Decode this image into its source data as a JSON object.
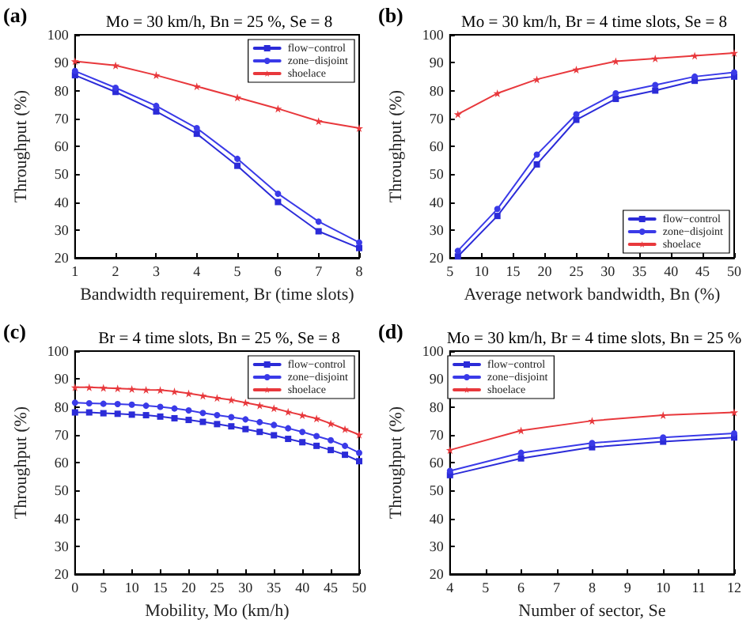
{
  "chart_data": [
    {
      "type": "line",
      "title": "Mo = 30 km/h, Bn = 25 %, Se = 8",
      "annotations": [
        "(a)"
      ],
      "xlabel": "Bandwidth requirement, Br (time slots)",
      "ylabel": "Throughput (%)",
      "x": [
        1,
        2,
        3,
        4,
        5,
        6,
        7,
        8
      ],
      "xlim": [
        1,
        8
      ],
      "xticks": [
        1,
        2,
        3,
        4,
        5,
        6,
        7,
        8
      ],
      "ylim": [
        20,
        100
      ],
      "yticks": [
        20,
        30,
        40,
        50,
        60,
        70,
        80,
        90,
        100
      ],
      "legend": "top right",
      "line_style": "solid",
      "series": [
        {
          "name": "flow−control",
          "color": "#2b2bd8",
          "marker": "square",
          "values": [
            85.5,
            79.5,
            72.5,
            64.5,
            53,
            40,
            29.5,
            23.5
          ]
        },
        {
          "name": "zone−disjoint",
          "color": "#3a3ae8",
          "marker": "circle",
          "values": [
            87,
            81,
            74.5,
            66.5,
            55.5,
            43,
            33,
            25.5
          ]
        },
        {
          "name": "shoelace",
          "color": "#e8383c",
          "marker": "star",
          "values": [
            90.5,
            89,
            85.5,
            81.5,
            77.5,
            73.5,
            69,
            66.5
          ]
        }
      ]
    },
    {
      "type": "line",
      "title": "Mo = 30 km/h, Br = 4 time slots, Se = 8",
      "annotations": [
        "(b)"
      ],
      "xlabel": "Average network bandwidth, Bn (%)",
      "ylabel": "Throughput (%)",
      "x": [
        6.25,
        12.5,
        18.75,
        25,
        31.25,
        37.5,
        43.75,
        50
      ],
      "xlim": [
        5,
        50
      ],
      "xticks": [
        5,
        10,
        15,
        20,
        25,
        30,
        35,
        40,
        45,
        50
      ],
      "ylim": [
        20,
        100
      ],
      "yticks": [
        20,
        30,
        40,
        50,
        60,
        70,
        80,
        90,
        100
      ],
      "legend": "bottom right",
      "line_style": "solid",
      "series": [
        {
          "name": "flow−control",
          "color": "#2b2bd8",
          "marker": "square",
          "values": [
            20.5,
            35,
            53.5,
            69.5,
            77,
            80,
            83.5,
            85
          ]
        },
        {
          "name": "zone−disjoint",
          "color": "#3a3ae8",
          "marker": "circle",
          "values": [
            22.5,
            37.5,
            57,
            71.5,
            79,
            82,
            85,
            86.5
          ]
        },
        {
          "name": "shoelace",
          "color": "#e8383c",
          "marker": "star",
          "values": [
            71.5,
            79,
            84,
            87.5,
            90.5,
            91.5,
            92.5,
            93.5
          ]
        }
      ]
    },
    {
      "type": "line",
      "title": "Br = 4 time slots, Bn = 25 %, Se = 8",
      "annotations": [
        "(c)"
      ],
      "xlabel": "Mobility, Mo (km/h)",
      "ylabel": "Throughput (%)",
      "x": [
        0,
        2.5,
        5,
        7.5,
        10,
        12.5,
        15,
        17.5,
        20,
        22.5,
        25,
        27.5,
        30,
        32.5,
        35,
        37.5,
        40,
        42.5,
        45,
        47.5,
        50
      ],
      "xlim": [
        0,
        50
      ],
      "xticks": [
        0,
        5,
        10,
        15,
        20,
        25,
        30,
        35,
        40,
        45,
        50
      ],
      "ylim": [
        20,
        100
      ],
      "yticks": [
        20,
        30,
        40,
        50,
        60,
        70,
        80,
        90,
        100
      ],
      "legend": "top right",
      "line_style": "solid",
      "series": [
        {
          "name": "flow−control",
          "color": "#2b2bd8",
          "marker": "square",
          "values": [
            78,
            78,
            77.7,
            77.5,
            77.2,
            77,
            76.5,
            75.9,
            75.3,
            74.6,
            73.8,
            73,
            72,
            71,
            69.8,
            68.5,
            67.3,
            66,
            64.5,
            62.8,
            60.5
          ]
        },
        {
          "name": "zone−disjoint",
          "color": "#3a3ae8",
          "marker": "circle",
          "values": [
            81.5,
            81.3,
            81.1,
            81,
            80.8,
            80.4,
            80,
            79.4,
            78.7,
            77.8,
            77,
            76.3,
            75.5,
            74.5,
            73.5,
            72.3,
            71,
            69.5,
            68,
            66,
            63.5
          ]
        },
        {
          "name": "shoelace",
          "color": "#e8383c",
          "marker": "star",
          "values": [
            87,
            87,
            86.8,
            86.6,
            86.4,
            86.1,
            86,
            85.5,
            84.8,
            84,
            83.2,
            82.5,
            81.5,
            80.5,
            79.5,
            78.2,
            77,
            75.8,
            74,
            72,
            70
          ]
        }
      ]
    },
    {
      "type": "line",
      "title": "Mo = 30 km/h, Br = 4 time slots, Bn = 25 %",
      "annotations": [
        "(d)"
      ],
      "xlabel": "Number of sector, Se",
      "ylabel": "Throughput (%)",
      "x": [
        4,
        6,
        8,
        10,
        12
      ],
      "xlim": [
        4,
        12
      ],
      "xticks": [
        4,
        5,
        6,
        7,
        8,
        9,
        10,
        11,
        12
      ],
      "ylim": [
        20,
        100
      ],
      "yticks": [
        20,
        30,
        40,
        50,
        60,
        70,
        80,
        90,
        100
      ],
      "legend": "top left",
      "line_style": "solid",
      "series": [
        {
          "name": "flow−control",
          "color": "#2b2bd8",
          "marker": "square",
          "values": [
            55.5,
            61.5,
            65.5,
            67.5,
            69
          ]
        },
        {
          "name": "zone−disjoint",
          "color": "#3a3ae8",
          "marker": "circle",
          "values": [
            57,
            63.5,
            67,
            69,
            70.5
          ]
        },
        {
          "name": "shoelace",
          "color": "#e8383c",
          "marker": "star",
          "values": [
            64.5,
            71.5,
            75,
            77,
            78
          ]
        }
      ]
    }
  ]
}
